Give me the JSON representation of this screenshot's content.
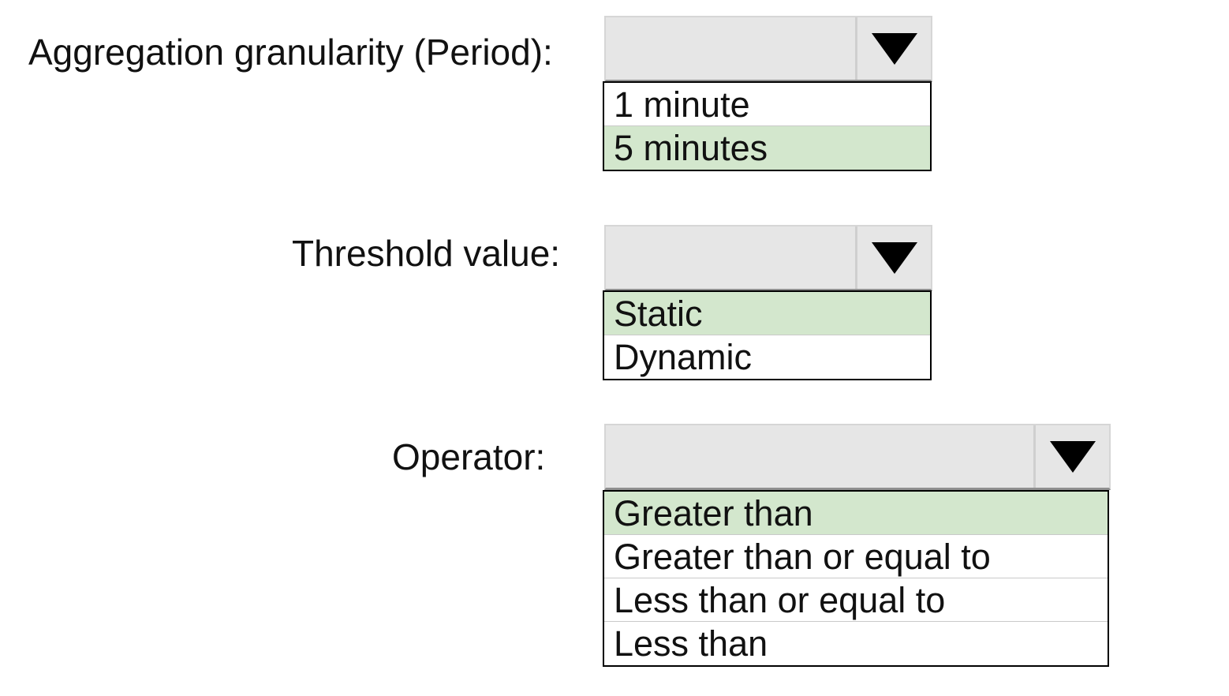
{
  "questions": [
    {
      "label": "Aggregation granularity (Period):",
      "options": [
        "1 minute",
        "5 minutes"
      ],
      "selected_index": 1
    },
    {
      "label": "Threshold value:",
      "options": [
        "Static",
        "Dynamic"
      ],
      "selected_index": 0
    },
    {
      "label": "Operator:",
      "options": [
        "Greater than",
        "Greater than or equal to",
        "Less than or equal to",
        "Less than"
      ],
      "selected_index": 0
    }
  ],
  "icons": {
    "dropdown_arrow": "triangle-down-icon"
  },
  "colors": {
    "selected_option": "#d3e7cd",
    "dropdown_background": "#e6e6e6",
    "option_border": "#000000"
  }
}
